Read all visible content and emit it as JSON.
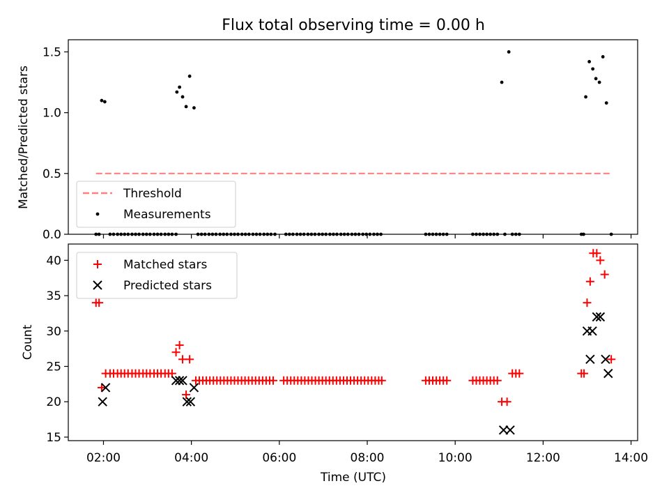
{
  "chart_data": [
    {
      "type": "scatter",
      "title": "Flux total observing time = 0.00 h",
      "xlabel": "",
      "ylabel": "Matched/Predicted stars",
      "xlim": [
        1.2,
        14.15
      ],
      "ylim": [
        0.0,
        1.6
      ],
      "yticks": [
        0.0,
        0.5,
        1.0,
        1.5
      ],
      "yticklabels": [
        "0.0",
        "0.5",
        "1.0",
        "1.5"
      ],
      "legend_position": "lower-left",
      "threshold": {
        "name": "Threshold",
        "color": "#ff7f7f",
        "y": 0.5,
        "x": [
          1.83,
          13.55
        ]
      },
      "series": [
        {
          "name": "Measurements",
          "color": "#000000",
          "points": [
            [
              1.83,
              0
            ],
            [
              1.9,
              0
            ],
            [
              1.96,
              1.1
            ],
            [
              2.03,
              1.09
            ],
            [
              2.15,
              0
            ],
            [
              2.23,
              0
            ],
            [
              2.32,
              0
            ],
            [
              2.4,
              0
            ],
            [
              2.48,
              0
            ],
            [
              2.56,
              0
            ],
            [
              2.65,
              0
            ],
            [
              2.73,
              0
            ],
            [
              2.81,
              0
            ],
            [
              2.9,
              0
            ],
            [
              2.98,
              0
            ],
            [
              3.06,
              0
            ],
            [
              3.15,
              0
            ],
            [
              3.23,
              0
            ],
            [
              3.31,
              0
            ],
            [
              3.4,
              0
            ],
            [
              3.48,
              0
            ],
            [
              3.56,
              0
            ],
            [
              3.65,
              0
            ],
            [
              3.67,
              1.17
            ],
            [
              3.73,
              1.21
            ],
            [
              3.8,
              1.13
            ],
            [
              3.88,
              1.05
            ],
            [
              3.96,
              1.3
            ],
            [
              4.06,
              1.04
            ],
            [
              4.15,
              0
            ],
            [
              4.23,
              0
            ],
            [
              4.31,
              0
            ],
            [
              4.4,
              0
            ],
            [
              4.48,
              0
            ],
            [
              4.56,
              0
            ],
            [
              4.65,
              0
            ],
            [
              4.73,
              0
            ],
            [
              4.81,
              0
            ],
            [
              4.9,
              0
            ],
            [
              4.98,
              0
            ],
            [
              5.06,
              0
            ],
            [
              5.15,
              0
            ],
            [
              5.23,
              0
            ],
            [
              5.31,
              0
            ],
            [
              5.4,
              0
            ],
            [
              5.48,
              0
            ],
            [
              5.56,
              0
            ],
            [
              5.65,
              0
            ],
            [
              5.73,
              0
            ],
            [
              5.81,
              0
            ],
            [
              5.9,
              0
            ],
            [
              6.15,
              0
            ],
            [
              6.23,
              0
            ],
            [
              6.31,
              0
            ],
            [
              6.4,
              0
            ],
            [
              6.48,
              0
            ],
            [
              6.56,
              0
            ],
            [
              6.65,
              0
            ],
            [
              6.73,
              0
            ],
            [
              6.81,
              0
            ],
            [
              6.9,
              0
            ],
            [
              6.98,
              0
            ],
            [
              7.06,
              0
            ],
            [
              7.15,
              0
            ],
            [
              7.23,
              0
            ],
            [
              7.31,
              0
            ],
            [
              7.4,
              0
            ],
            [
              7.48,
              0
            ],
            [
              7.56,
              0
            ],
            [
              7.65,
              0
            ],
            [
              7.73,
              0
            ],
            [
              7.81,
              0
            ],
            [
              7.9,
              0
            ],
            [
              7.98,
              0
            ],
            [
              8.06,
              0
            ],
            [
              8.15,
              0
            ],
            [
              8.23,
              0
            ],
            [
              8.31,
              0
            ],
            [
              9.33,
              0
            ],
            [
              9.41,
              0
            ],
            [
              9.49,
              0
            ],
            [
              9.57,
              0
            ],
            [
              9.65,
              0
            ],
            [
              9.73,
              0
            ],
            [
              9.81,
              0
            ],
            [
              10.4,
              0
            ],
            [
              10.48,
              0
            ],
            [
              10.56,
              0
            ],
            [
              10.64,
              0
            ],
            [
              10.72,
              0
            ],
            [
              10.8,
              0
            ],
            [
              10.88,
              0
            ],
            [
              10.96,
              0
            ],
            [
              11.06,
              1.25
            ],
            [
              11.13,
              0
            ],
            [
              11.22,
              1.5
            ],
            [
              11.3,
              0
            ],
            [
              11.38,
              0
            ],
            [
              11.46,
              0
            ],
            [
              12.87,
              0
            ],
            [
              12.92,
              0
            ],
            [
              12.97,
              1.13
            ],
            [
              13.05,
              1.42
            ],
            [
              13.13,
              1.36
            ],
            [
              13.2,
              1.28
            ],
            [
              13.28,
              1.25
            ],
            [
              13.36,
              1.46
            ],
            [
              13.44,
              1.08
            ],
            [
              13.55,
              0
            ]
          ]
        }
      ],
      "legend": [
        "Threshold",
        "Measurements"
      ]
    },
    {
      "type": "scatter",
      "title": "",
      "xlabel": "Time (UTC)",
      "ylabel": "Count",
      "xlim": [
        1.2,
        14.15
      ],
      "ylim": [
        14.5,
        42.3
      ],
      "xticks": [
        2,
        4,
        6,
        8,
        10,
        12,
        14
      ],
      "xticklabels": [
        "02:00",
        "04:00",
        "06:00",
        "08:00",
        "10:00",
        "12:00",
        "14:00"
      ],
      "yticks": [
        15,
        20,
        25,
        30,
        35,
        40
      ],
      "yticklabels": [
        "15",
        "20",
        "25",
        "30",
        "35",
        "40"
      ],
      "legend_position": "top-left",
      "series": [
        {
          "name": "Matched stars",
          "color": "#ff0000",
          "marker": "plus",
          "points": [
            [
              1.83,
              34
            ],
            [
              1.9,
              34
            ],
            [
              1.96,
              22
            ],
            [
              2.05,
              24
            ],
            [
              2.15,
              24
            ],
            [
              2.23,
              24
            ],
            [
              2.32,
              24
            ],
            [
              2.4,
              24
            ],
            [
              2.48,
              24
            ],
            [
              2.56,
              24
            ],
            [
              2.65,
              24
            ],
            [
              2.73,
              24
            ],
            [
              2.81,
              24
            ],
            [
              2.9,
              24
            ],
            [
              2.98,
              24
            ],
            [
              3.06,
              24
            ],
            [
              3.15,
              24
            ],
            [
              3.23,
              24
            ],
            [
              3.31,
              24
            ],
            [
              3.4,
              24
            ],
            [
              3.48,
              24
            ],
            [
              3.56,
              24
            ],
            [
              3.65,
              27
            ],
            [
              3.73,
              28
            ],
            [
              3.8,
              26
            ],
            [
              3.88,
              21
            ],
            [
              3.96,
              26
            ],
            [
              4.1,
              23
            ],
            [
              4.18,
              23
            ],
            [
              4.26,
              23
            ],
            [
              4.34,
              23
            ],
            [
              4.42,
              23
            ],
            [
              4.5,
              23
            ],
            [
              4.58,
              23
            ],
            [
              4.66,
              23
            ],
            [
              4.74,
              23
            ],
            [
              4.82,
              23
            ],
            [
              4.9,
              23
            ],
            [
              4.98,
              23
            ],
            [
              5.06,
              23
            ],
            [
              5.14,
              23
            ],
            [
              5.22,
              23
            ],
            [
              5.3,
              23
            ],
            [
              5.38,
              23
            ],
            [
              5.46,
              23
            ],
            [
              5.54,
              23
            ],
            [
              5.62,
              23
            ],
            [
              5.7,
              23
            ],
            [
              5.78,
              23
            ],
            [
              5.86,
              23
            ],
            [
              6.1,
              23
            ],
            [
              6.18,
              23
            ],
            [
              6.26,
              23
            ],
            [
              6.34,
              23
            ],
            [
              6.42,
              23
            ],
            [
              6.5,
              23
            ],
            [
              6.58,
              23
            ],
            [
              6.66,
              23
            ],
            [
              6.74,
              23
            ],
            [
              6.82,
              23
            ],
            [
              6.9,
              23
            ],
            [
              6.98,
              23
            ],
            [
              7.06,
              23
            ],
            [
              7.14,
              23
            ],
            [
              7.22,
              23
            ],
            [
              7.3,
              23
            ],
            [
              7.38,
              23
            ],
            [
              7.46,
              23
            ],
            [
              7.54,
              23
            ],
            [
              7.62,
              23
            ],
            [
              7.7,
              23
            ],
            [
              7.78,
              23
            ],
            [
              7.86,
              23
            ],
            [
              7.94,
              23
            ],
            [
              8.02,
              23
            ],
            [
              8.1,
              23
            ],
            [
              8.18,
              23
            ],
            [
              8.26,
              23
            ],
            [
              8.33,
              23
            ],
            [
              9.33,
              23
            ],
            [
              9.41,
              23
            ],
            [
              9.49,
              23
            ],
            [
              9.57,
              23
            ],
            [
              9.65,
              23
            ],
            [
              9.73,
              23
            ],
            [
              9.81,
              23
            ],
            [
              10.4,
              23
            ],
            [
              10.48,
              23
            ],
            [
              10.56,
              23
            ],
            [
              10.64,
              23
            ],
            [
              10.72,
              23
            ],
            [
              10.8,
              23
            ],
            [
              10.88,
              23
            ],
            [
              10.96,
              23
            ],
            [
              11.06,
              20
            ],
            [
              11.18,
              20
            ],
            [
              11.3,
              24
            ],
            [
              11.38,
              24
            ],
            [
              11.46,
              24
            ],
            [
              12.87,
              24
            ],
            [
              12.93,
              24
            ],
            [
              13.0,
              34
            ],
            [
              13.07,
              37
            ],
            [
              13.14,
              41
            ],
            [
              13.22,
              41
            ],
            [
              13.3,
              40
            ],
            [
              13.4,
              38
            ],
            [
              13.55,
              26
            ]
          ]
        },
        {
          "name": "Predicted stars",
          "color": "#000000",
          "marker": "x",
          "points": [
            [
              1.98,
              20
            ],
            [
              2.05,
              22
            ],
            [
              3.65,
              23
            ],
            [
              3.73,
              23
            ],
            [
              3.8,
              23
            ],
            [
              3.9,
              20
            ],
            [
              3.98,
              20
            ],
            [
              4.06,
              22
            ],
            [
              11.1,
              16
            ],
            [
              11.25,
              16
            ],
            [
              13.0,
              30
            ],
            [
              13.07,
              26
            ],
            [
              13.12,
              30
            ],
            [
              13.22,
              32
            ],
            [
              13.3,
              32
            ],
            [
              13.42,
              26
            ],
            [
              13.48,
              24
            ]
          ]
        }
      ],
      "legend": [
        "Matched stars",
        "Predicted stars"
      ]
    }
  ]
}
